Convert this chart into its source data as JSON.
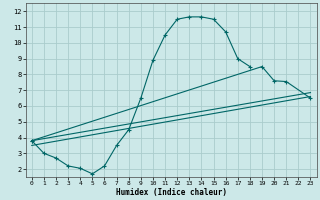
{
  "xlabel": "Humidex (Indice chaleur)",
  "bg_color": "#cce8e8",
  "grid_color": "#aacccc",
  "line_color": "#006666",
  "xlim": [
    -0.5,
    23.5
  ],
  "ylim": [
    1.5,
    12.5
  ],
  "xticks": [
    0,
    1,
    2,
    3,
    4,
    5,
    6,
    7,
    8,
    9,
    10,
    11,
    12,
    13,
    14,
    15,
    16,
    17,
    18,
    19,
    20,
    21,
    22,
    23
  ],
  "yticks": [
    2,
    3,
    4,
    5,
    6,
    7,
    8,
    9,
    10,
    11,
    12
  ],
  "curve1_x": [
    0,
    1,
    2,
    3,
    4,
    5,
    6,
    7,
    8,
    9,
    10,
    11,
    12,
    13,
    14,
    15,
    16,
    17,
    18
  ],
  "curve1_y": [
    3.8,
    3.0,
    2.7,
    2.2,
    2.05,
    1.7,
    2.2,
    3.5,
    4.5,
    6.5,
    8.9,
    10.5,
    11.5,
    11.65,
    11.65,
    11.5,
    10.7,
    9.0,
    8.5
  ],
  "curve2_x": [
    0,
    19,
    20,
    21,
    23
  ],
  "curve2_y": [
    3.8,
    8.5,
    7.6,
    7.55,
    6.5
  ],
  "line3_x": [
    0,
    23
  ],
  "line3_y": [
    3.5,
    6.6
  ],
  "line4_x": [
    0,
    23
  ],
  "line4_y": [
    3.8,
    6.85
  ]
}
